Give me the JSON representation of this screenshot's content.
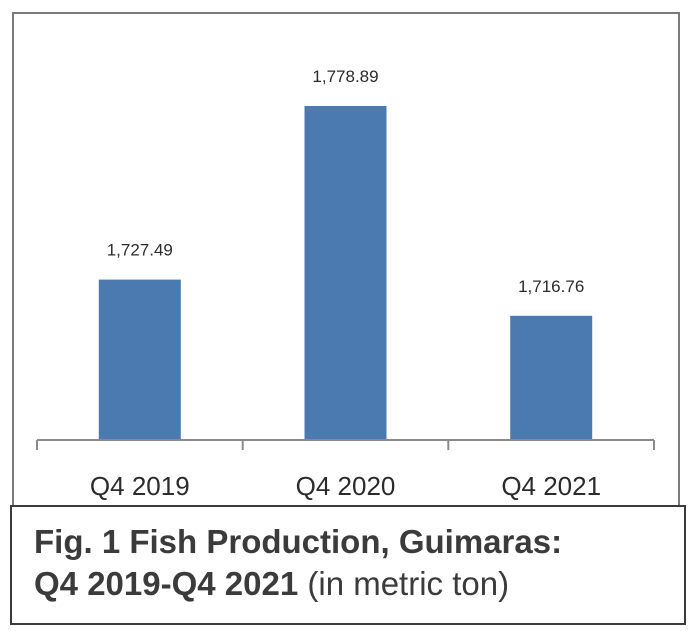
{
  "chart_data": {
    "type": "bar",
    "categories": [
      "Q4 2019",
      "Q4 2020",
      "Q4 2021"
    ],
    "values": [
      1727.49,
      1778.89,
      1716.76
    ],
    "value_labels": [
      "1,727.49",
      "1,778.89",
      "1,716.76"
    ],
    "title": "",
    "xlabel": "",
    "ylabel": "",
    "ylim": [
      1680,
      1790
    ],
    "grid": false,
    "bar_color": "#4a7ab0"
  },
  "caption": {
    "line1": "Fig. 1 Fish Production, Guimaras:",
    "line2_bold": "Q4 2019-Q4 2021",
    "line2_normal": " (in metric ton)"
  }
}
